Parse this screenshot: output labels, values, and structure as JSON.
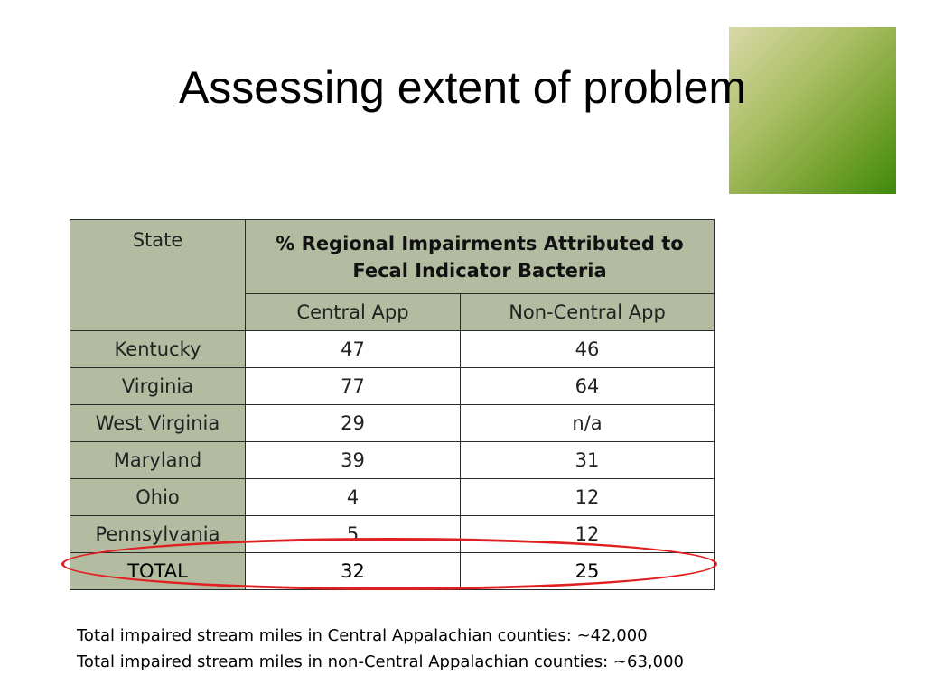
{
  "slide": {
    "title": "Assessing extent of problem"
  },
  "table": {
    "header": {
      "state": "State",
      "group": "% Regional Impairments Attributed to Fecal Indicator Bacteria",
      "central": "Central App",
      "noncentral": "Non-Central App"
    },
    "rows": [
      {
        "state": "Kentucky",
        "central": "47",
        "noncentral": "46"
      },
      {
        "state": "Virginia",
        "central": "77",
        "noncentral": "64"
      },
      {
        "state": "West Virginia",
        "central": "29",
        "noncentral": "n/a"
      },
      {
        "state": "Maryland",
        "central": "39",
        "noncentral": "31"
      },
      {
        "state": "Ohio",
        "central": "4",
        "noncentral": "12"
      },
      {
        "state": "Pennsylvania",
        "central": "5",
        "noncentral": "12"
      }
    ],
    "total": {
      "state": "TOTAL",
      "central": "32",
      "noncentral": "25"
    }
  },
  "notes": [
    "Total impaired stream miles in Central Appalachian counties: ~42,000",
    "Total impaired stream miles in non-Central Appalachian counties: ~63,000"
  ],
  "colors": {
    "header_fill": "#b3bca1",
    "highlight_ellipse": "#e02020",
    "accent_square": "#6f9f2a"
  }
}
